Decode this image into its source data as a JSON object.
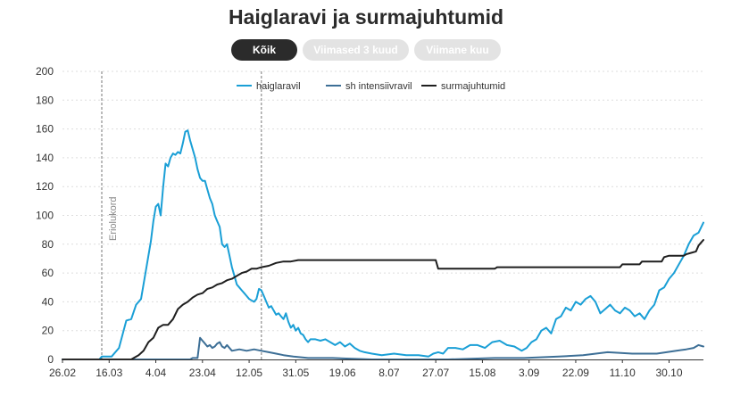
{
  "header": {
    "title": "Haiglaravi ja surmajuhtumid"
  },
  "tabs": [
    {
      "label": "Kõik",
      "active": true
    },
    {
      "label": "Viimased 3 kuud",
      "active": false
    },
    {
      "label": "Viimane kuu",
      "active": false
    }
  ],
  "colors": {
    "haiglaravil": "#1a9fd6",
    "intensiiv": "#3d6f96",
    "surm": "#1f1f1f",
    "grid": "#dddddd",
    "annotation": "#777777"
  },
  "chart_data": {
    "type": "line",
    "title": "Haiglaravi ja surmajuhtumid",
    "xlabel": "",
    "ylabel": "",
    "ylim": [
      0,
      200
    ],
    "yticks": [
      0,
      20,
      40,
      60,
      80,
      100,
      120,
      140,
      160,
      180,
      200
    ],
    "xlim": [
      "2020-02-26",
      "2020-11-13"
    ],
    "xticks": [
      {
        "date": "2020-02-26",
        "label": "26.02"
      },
      {
        "date": "2020-03-16",
        "label": "16.03"
      },
      {
        "date": "2020-04-04",
        "label": "4.04"
      },
      {
        "date": "2020-04-23",
        "label": "23.04"
      },
      {
        "date": "2020-05-12",
        "label": "12.05"
      },
      {
        "date": "2020-05-31",
        "label": "31.05"
      },
      {
        "date": "2020-06-19",
        "label": "19.06"
      },
      {
        "date": "2020-07-08",
        "label": "8.07"
      },
      {
        "date": "2020-07-27",
        "label": "27.07"
      },
      {
        "date": "2020-08-15",
        "label": "15.08"
      },
      {
        "date": "2020-09-03",
        "label": "3.09"
      },
      {
        "date": "2020-09-22",
        "label": "22.09"
      },
      {
        "date": "2020-10-11",
        "label": "11.10"
      },
      {
        "date": "2020-10-30",
        "label": "30.10"
      }
    ],
    "grid": true,
    "legend_position": "top-center",
    "annotations": [
      {
        "date": "2020-03-13",
        "label": "Eriolukord"
      },
      {
        "date": "2020-05-17",
        "label": ""
      }
    ],
    "series": [
      {
        "name": "haiglaravil",
        "color": "#1a9fd6",
        "points": [
          [
            "2020-02-26",
            0
          ],
          [
            "2020-03-12",
            0
          ],
          [
            "2020-03-13",
            2
          ],
          [
            "2020-03-17",
            2
          ],
          [
            "2020-03-20",
            8
          ],
          [
            "2020-03-23",
            27
          ],
          [
            "2020-03-25",
            28
          ],
          [
            "2020-03-27",
            38
          ],
          [
            "2020-03-29",
            42
          ],
          [
            "2020-03-31",
            62
          ],
          [
            "2020-04-02",
            82
          ],
          [
            "2020-04-03",
            96
          ],
          [
            "2020-04-04",
            106
          ],
          [
            "2020-04-05",
            108
          ],
          [
            "2020-04-06",
            100
          ],
          [
            "2020-04-07",
            120
          ],
          [
            "2020-04-08",
            136
          ],
          [
            "2020-04-09",
            134
          ],
          [
            "2020-04-10",
            140
          ],
          [
            "2020-04-11",
            143
          ],
          [
            "2020-04-12",
            142
          ],
          [
            "2020-04-13",
            144
          ],
          [
            "2020-04-14",
            143
          ],
          [
            "2020-04-15",
            150
          ],
          [
            "2020-04-16",
            158
          ],
          [
            "2020-04-17",
            159
          ],
          [
            "2020-04-18",
            152
          ],
          [
            "2020-04-19",
            146
          ],
          [
            "2020-04-20",
            140
          ],
          [
            "2020-04-21",
            132
          ],
          [
            "2020-04-22",
            126
          ],
          [
            "2020-04-23",
            124
          ],
          [
            "2020-04-24",
            124
          ],
          [
            "2020-04-25",
            118
          ],
          [
            "2020-04-26",
            112
          ],
          [
            "2020-04-27",
            108
          ],
          [
            "2020-04-28",
            100
          ],
          [
            "2020-04-29",
            96
          ],
          [
            "2020-04-30",
            92
          ],
          [
            "2020-05-01",
            80
          ],
          [
            "2020-05-02",
            78
          ],
          [
            "2020-05-03",
            80
          ],
          [
            "2020-05-04",
            72
          ],
          [
            "2020-05-05",
            64
          ],
          [
            "2020-05-06",
            58
          ],
          [
            "2020-05-07",
            52
          ],
          [
            "2020-05-08",
            50
          ],
          [
            "2020-05-09",
            48
          ],
          [
            "2020-05-10",
            46
          ],
          [
            "2020-05-11",
            44
          ],
          [
            "2020-05-12",
            42
          ],
          [
            "2020-05-13",
            41
          ],
          [
            "2020-05-14",
            40
          ],
          [
            "2020-05-15",
            42
          ],
          [
            "2020-05-16",
            49
          ],
          [
            "2020-05-17",
            48
          ],
          [
            "2020-05-18",
            44
          ],
          [
            "2020-05-19",
            40
          ],
          [
            "2020-05-20",
            36
          ],
          [
            "2020-05-21",
            37
          ],
          [
            "2020-05-22",
            34
          ],
          [
            "2020-05-23",
            31
          ],
          [
            "2020-05-24",
            32
          ],
          [
            "2020-05-25",
            30
          ],
          [
            "2020-05-26",
            28
          ],
          [
            "2020-05-27",
            32
          ],
          [
            "2020-05-28",
            26
          ],
          [
            "2020-05-29",
            22
          ],
          [
            "2020-05-30",
            24
          ],
          [
            "2020-05-31",
            20
          ],
          [
            "2020-06-01",
            22
          ],
          [
            "2020-06-02",
            18
          ],
          [
            "2020-06-03",
            17
          ],
          [
            "2020-06-04",
            14
          ],
          [
            "2020-06-05",
            12
          ],
          [
            "2020-06-06",
            14
          ],
          [
            "2020-06-08",
            14
          ],
          [
            "2020-06-10",
            13
          ],
          [
            "2020-06-12",
            14
          ],
          [
            "2020-06-14",
            12
          ],
          [
            "2020-06-16",
            10
          ],
          [
            "2020-06-18",
            12
          ],
          [
            "2020-06-20",
            9
          ],
          [
            "2020-06-22",
            11
          ],
          [
            "2020-06-24",
            8
          ],
          [
            "2020-06-26",
            6
          ],
          [
            "2020-06-28",
            5
          ],
          [
            "2020-07-01",
            4
          ],
          [
            "2020-07-05",
            3
          ],
          [
            "2020-07-10",
            4
          ],
          [
            "2020-07-15",
            3
          ],
          [
            "2020-07-20",
            3
          ],
          [
            "2020-07-24",
            2
          ],
          [
            "2020-07-26",
            4
          ],
          [
            "2020-07-28",
            5
          ],
          [
            "2020-07-30",
            4
          ],
          [
            "2020-08-01",
            8
          ],
          [
            "2020-08-04",
            8
          ],
          [
            "2020-08-07",
            7
          ],
          [
            "2020-08-10",
            10
          ],
          [
            "2020-08-13",
            10
          ],
          [
            "2020-08-16",
            8
          ],
          [
            "2020-08-19",
            12
          ],
          [
            "2020-08-22",
            13
          ],
          [
            "2020-08-25",
            10
          ],
          [
            "2020-08-28",
            9
          ],
          [
            "2020-08-31",
            6
          ],
          [
            "2020-09-02",
            8
          ],
          [
            "2020-09-04",
            12
          ],
          [
            "2020-09-06",
            14
          ],
          [
            "2020-09-08",
            20
          ],
          [
            "2020-09-10",
            22
          ],
          [
            "2020-09-12",
            18
          ],
          [
            "2020-09-14",
            28
          ],
          [
            "2020-09-16",
            30
          ],
          [
            "2020-09-18",
            36
          ],
          [
            "2020-09-20",
            34
          ],
          [
            "2020-09-22",
            40
          ],
          [
            "2020-09-24",
            38
          ],
          [
            "2020-09-26",
            42
          ],
          [
            "2020-09-28",
            44
          ],
          [
            "2020-09-30",
            40
          ],
          [
            "2020-10-02",
            32
          ],
          [
            "2020-10-04",
            35
          ],
          [
            "2020-10-06",
            38
          ],
          [
            "2020-10-08",
            34
          ],
          [
            "2020-10-10",
            32
          ],
          [
            "2020-10-12",
            36
          ],
          [
            "2020-10-14",
            34
          ],
          [
            "2020-10-16",
            30
          ],
          [
            "2020-10-18",
            32
          ],
          [
            "2020-10-20",
            28
          ],
          [
            "2020-10-22",
            34
          ],
          [
            "2020-10-24",
            38
          ],
          [
            "2020-10-26",
            48
          ],
          [
            "2020-10-28",
            50
          ],
          [
            "2020-10-30",
            56
          ],
          [
            "2020-11-01",
            60
          ],
          [
            "2020-11-03",
            66
          ],
          [
            "2020-11-05",
            72
          ],
          [
            "2020-11-07",
            80
          ],
          [
            "2020-11-09",
            86
          ],
          [
            "2020-11-11",
            88
          ],
          [
            "2020-11-13",
            95
          ]
        ]
      },
      {
        "name": "sh intensiivravil",
        "color": "#3d6f96",
        "points": [
          [
            "2020-02-26",
            0
          ],
          [
            "2020-04-18",
            0
          ],
          [
            "2020-04-19",
            1
          ],
          [
            "2020-04-21",
            1
          ],
          [
            "2020-04-22",
            15
          ],
          [
            "2020-04-23",
            13
          ],
          [
            "2020-04-24",
            11
          ],
          [
            "2020-04-25",
            9
          ],
          [
            "2020-04-26",
            10
          ],
          [
            "2020-04-27",
            8
          ],
          [
            "2020-04-28",
            9
          ],
          [
            "2020-04-29",
            11
          ],
          [
            "2020-04-30",
            12
          ],
          [
            "2020-05-01",
            9
          ],
          [
            "2020-05-02",
            8
          ],
          [
            "2020-05-03",
            10
          ],
          [
            "2020-05-05",
            6
          ],
          [
            "2020-05-08",
            7
          ],
          [
            "2020-05-11",
            6
          ],
          [
            "2020-05-14",
            7
          ],
          [
            "2020-05-17",
            6
          ],
          [
            "2020-05-20",
            5
          ],
          [
            "2020-05-23",
            4
          ],
          [
            "2020-05-26",
            3
          ],
          [
            "2020-05-30",
            2
          ],
          [
            "2020-06-05",
            1
          ],
          [
            "2020-06-15",
            1
          ],
          [
            "2020-07-01",
            0
          ],
          [
            "2020-08-01",
            0
          ],
          [
            "2020-08-20",
            1
          ],
          [
            "2020-09-01",
            1
          ],
          [
            "2020-09-15",
            2
          ],
          [
            "2020-09-25",
            3
          ],
          [
            "2020-10-05",
            5
          ],
          [
            "2020-10-15",
            4
          ],
          [
            "2020-10-25",
            4
          ],
          [
            "2020-11-02",
            6
          ],
          [
            "2020-11-06",
            7
          ],
          [
            "2020-11-09",
            8
          ],
          [
            "2020-11-11",
            10
          ],
          [
            "2020-11-13",
            9
          ]
        ]
      },
      {
        "name": "surmajuhtumid",
        "color": "#1f1f1f",
        "points": [
          [
            "2020-02-26",
            0
          ],
          [
            "2020-03-25",
            0
          ],
          [
            "2020-03-26",
            1
          ],
          [
            "2020-03-28",
            3
          ],
          [
            "2020-03-30",
            6
          ],
          [
            "2020-04-01",
            12
          ],
          [
            "2020-04-03",
            15
          ],
          [
            "2020-04-05",
            22
          ],
          [
            "2020-04-07",
            24
          ],
          [
            "2020-04-09",
            24
          ],
          [
            "2020-04-11",
            28
          ],
          [
            "2020-04-13",
            35
          ],
          [
            "2020-04-15",
            38
          ],
          [
            "2020-04-17",
            40
          ],
          [
            "2020-04-19",
            43
          ],
          [
            "2020-04-21",
            45
          ],
          [
            "2020-04-23",
            46
          ],
          [
            "2020-04-25",
            49
          ],
          [
            "2020-04-27",
            50
          ],
          [
            "2020-04-29",
            52
          ],
          [
            "2020-05-01",
            53
          ],
          [
            "2020-05-03",
            55
          ],
          [
            "2020-05-05",
            56
          ],
          [
            "2020-05-07",
            58
          ],
          [
            "2020-05-09",
            60
          ],
          [
            "2020-05-11",
            61
          ],
          [
            "2020-05-13",
            63
          ],
          [
            "2020-05-15",
            63
          ],
          [
            "2020-05-17",
            64
          ],
          [
            "2020-05-20",
            65
          ],
          [
            "2020-05-23",
            67
          ],
          [
            "2020-05-26",
            68
          ],
          [
            "2020-05-29",
            68
          ],
          [
            "2020-06-01",
            69
          ],
          [
            "2020-07-27",
            69
          ],
          [
            "2020-07-28",
            63
          ],
          [
            "2020-08-20",
            63
          ],
          [
            "2020-08-21",
            64
          ],
          [
            "2020-10-10",
            64
          ],
          [
            "2020-10-11",
            66
          ],
          [
            "2020-10-18",
            66
          ],
          [
            "2020-10-19",
            68
          ],
          [
            "2020-10-27",
            68
          ],
          [
            "2020-10-28",
            71
          ],
          [
            "2020-10-30",
            72
          ],
          [
            "2020-11-05",
            72
          ],
          [
            "2020-11-06",
            73
          ],
          [
            "2020-11-08",
            74
          ],
          [
            "2020-11-10",
            75
          ],
          [
            "2020-11-11",
            79
          ],
          [
            "2020-11-12",
            81
          ],
          [
            "2020-11-13",
            83
          ]
        ]
      }
    ]
  }
}
